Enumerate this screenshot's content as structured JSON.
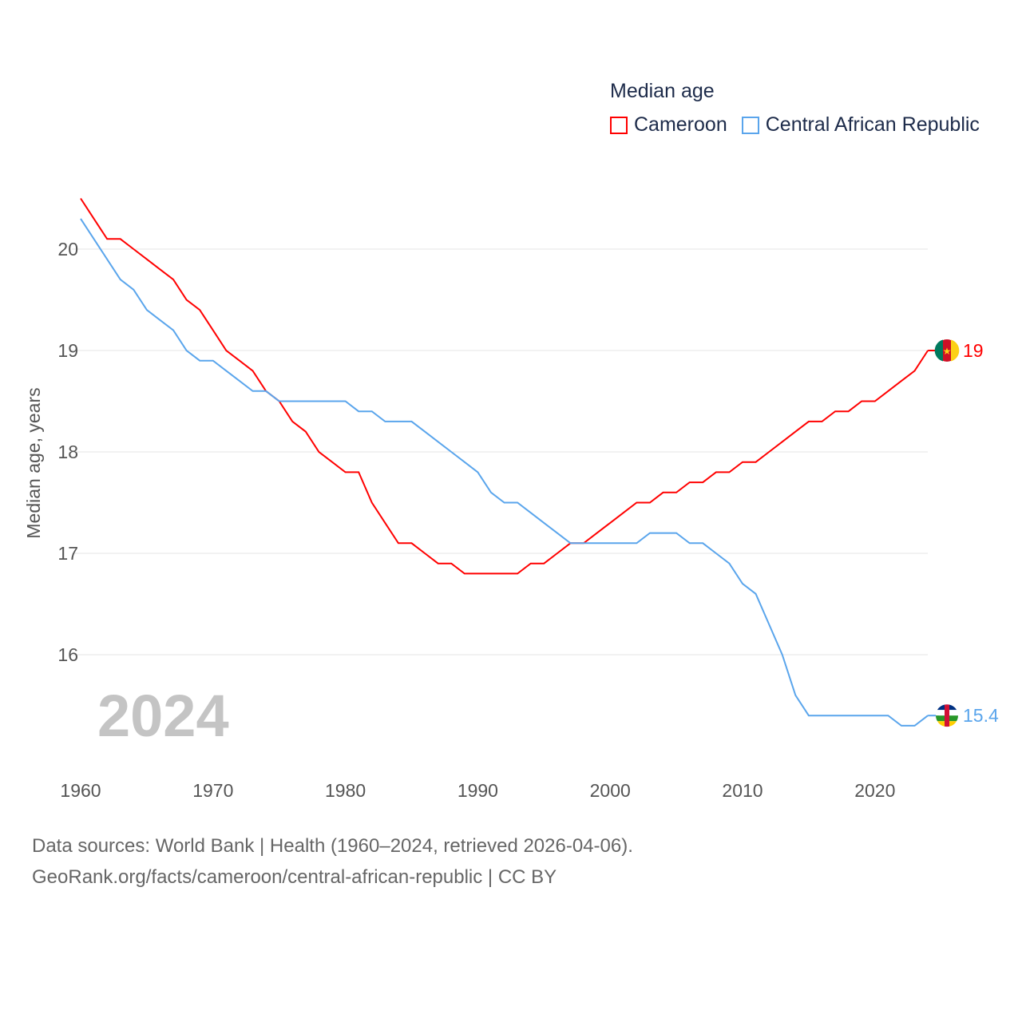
{
  "chart_data": {
    "type": "line",
    "title": "Median age",
    "xlabel": "",
    "ylabel": "Median age, years",
    "xlim": [
      1960,
      2024
    ],
    "ylim": [
      15.0,
      20.5
    ],
    "x_ticks": [
      1960,
      1970,
      1980,
      1990,
      2000,
      2010,
      2020
    ],
    "y_ticks": [
      16,
      17,
      18,
      19,
      20
    ],
    "grid": true,
    "legend_position": "top-right",
    "year_watermark": "2024",
    "x": [
      1960,
      1961,
      1962,
      1963,
      1964,
      1965,
      1966,
      1967,
      1968,
      1969,
      1970,
      1971,
      1972,
      1973,
      1974,
      1975,
      1976,
      1977,
      1978,
      1979,
      1980,
      1981,
      1982,
      1983,
      1984,
      1985,
      1986,
      1987,
      1988,
      1989,
      1990,
      1991,
      1992,
      1993,
      1994,
      1995,
      1996,
      1997,
      1998,
      1999,
      2000,
      2001,
      2002,
      2003,
      2004,
      2005,
      2006,
      2007,
      2008,
      2009,
      2010,
      2011,
      2012,
      2013,
      2014,
      2015,
      2016,
      2017,
      2018,
      2019,
      2020,
      2021,
      2022,
      2023,
      2024
    ],
    "series": [
      {
        "name": "Cameroon",
        "color": "#ff0000",
        "end_label": "19",
        "values": [
          20.5,
          20.3,
          20.1,
          20.1,
          20.0,
          19.9,
          19.8,
          19.7,
          19.5,
          19.4,
          19.2,
          19.0,
          18.9,
          18.8,
          18.6,
          18.5,
          18.3,
          18.2,
          18.0,
          17.9,
          17.8,
          17.8,
          17.5,
          17.3,
          17.1,
          17.1,
          17.0,
          16.9,
          16.9,
          16.8,
          16.8,
          16.8,
          16.8,
          16.8,
          16.9,
          16.9,
          17.0,
          17.1,
          17.1,
          17.2,
          17.3,
          17.4,
          17.5,
          17.5,
          17.6,
          17.6,
          17.7,
          17.7,
          17.8,
          17.8,
          17.9,
          17.9,
          18.0,
          18.1,
          18.2,
          18.3,
          18.3,
          18.4,
          18.4,
          18.5,
          18.5,
          18.6,
          18.7,
          18.8,
          19.0
        ]
      },
      {
        "name": "Central African Republic",
        "color": "#5aa5ec",
        "end_label": "15.4",
        "values": [
          20.3,
          20.1,
          19.9,
          19.7,
          19.6,
          19.4,
          19.3,
          19.2,
          19.0,
          18.9,
          18.9,
          18.8,
          18.7,
          18.6,
          18.6,
          18.5,
          18.5,
          18.5,
          18.5,
          18.5,
          18.5,
          18.4,
          18.4,
          18.3,
          18.3,
          18.3,
          18.2,
          18.1,
          18.0,
          17.9,
          17.8,
          17.6,
          17.5,
          17.5,
          17.4,
          17.3,
          17.2,
          17.1,
          17.1,
          17.1,
          17.1,
          17.1,
          17.1,
          17.2,
          17.2,
          17.2,
          17.1,
          17.1,
          17.0,
          16.9,
          16.7,
          16.6,
          16.3,
          16.0,
          15.6,
          15.4,
          15.4,
          15.4,
          15.4,
          15.4,
          15.4,
          15.4,
          15.3,
          15.3,
          15.4
        ]
      }
    ]
  },
  "footer": {
    "line1": "Data sources: World Bank | Health (1960–2024, retrieved 2026-04-06).",
    "line2": "GeoRank.org/facts/cameroon/central-african-republic | CC BY"
  }
}
